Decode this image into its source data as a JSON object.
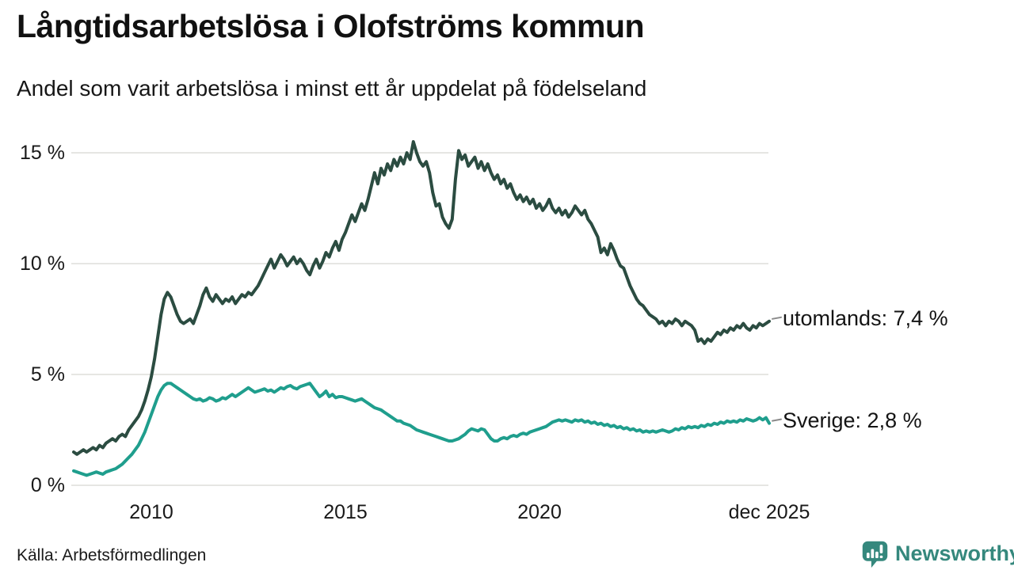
{
  "chart_data": {
    "type": "line",
    "title": "Långtidsarbetslösa i Olofströms kommun",
    "subtitle": "Andel som varit arbetslösa i minst ett år uppdelat på födelseland",
    "source": "Källa: Arbetsförmedlingen",
    "x_start": "2008-01",
    "x_end": "2025-12",
    "frequency": "monthly",
    "ylim": [
      0,
      15.5
    ],
    "grid": true,
    "unit": "%",
    "yticks": [
      {
        "value": 0,
        "label": "0 %"
      },
      {
        "value": 5,
        "label": "5 %"
      },
      {
        "value": 10,
        "label": "10 %"
      },
      {
        "value": 15,
        "label": "15 %"
      }
    ],
    "xticks": [
      {
        "month_index": 24,
        "label": "2010"
      },
      {
        "month_index": 84,
        "label": "2015"
      },
      {
        "month_index": 144,
        "label": "2020"
      },
      {
        "month_index": 215,
        "label": "dec 2025"
      }
    ],
    "series": [
      {
        "name": "utomlands",
        "color": "#2b4c41",
        "end_value": "7,4 %",
        "end_label": "utomlands: 7,4 %",
        "values": [
          1.5,
          1.4,
          1.5,
          1.6,
          1.5,
          1.6,
          1.7,
          1.6,
          1.8,
          1.7,
          1.9,
          2.0,
          2.1,
          2.0,
          2.2,
          2.3,
          2.2,
          2.5,
          2.7,
          2.9,
          3.1,
          3.4,
          3.8,
          4.3,
          4.9,
          5.7,
          6.7,
          7.7,
          8.4,
          8.7,
          8.5,
          8.1,
          7.7,
          7.4,
          7.3,
          7.4,
          7.5,
          7.3,
          7.7,
          8.1,
          8.6,
          8.9,
          8.5,
          8.3,
          8.6,
          8.4,
          8.2,
          8.4,
          8.3,
          8.5,
          8.2,
          8.4,
          8.6,
          8.5,
          8.7,
          8.6,
          8.8,
          9.0,
          9.3,
          9.6,
          9.9,
          10.2,
          9.8,
          10.1,
          10.4,
          10.2,
          9.9,
          10.1,
          10.3,
          10.0,
          10.2,
          10.0,
          9.7,
          9.5,
          9.9,
          10.2,
          9.8,
          10.1,
          10.5,
          10.3,
          10.7,
          11.0,
          10.6,
          11.1,
          11.4,
          11.8,
          12.2,
          11.9,
          12.3,
          12.7,
          12.4,
          12.9,
          13.5,
          14.1,
          13.6,
          14.3,
          14.0,
          14.5,
          14.2,
          14.7,
          14.4,
          14.8,
          14.5,
          15.0,
          14.7,
          15.5,
          15.0,
          14.6,
          14.4,
          14.6,
          14.1,
          13.2,
          12.6,
          12.7,
          12.1,
          11.8,
          11.6,
          12.0,
          13.8,
          15.1,
          14.7,
          14.9,
          14.4,
          14.6,
          14.8,
          14.3,
          14.6,
          14.2,
          14.5,
          14.1,
          13.8,
          14.0,
          13.6,
          13.8,
          13.4,
          13.6,
          13.2,
          12.9,
          13.1,
          12.8,
          13.0,
          12.7,
          12.9,
          12.5,
          12.7,
          12.4,
          12.6,
          12.9,
          12.5,
          12.3,
          12.5,
          12.2,
          12.4,
          12.1,
          12.3,
          12.6,
          12.4,
          12.2,
          12.4,
          12.0,
          11.8,
          11.5,
          11.2,
          10.5,
          10.7,
          10.4,
          10.9,
          10.6,
          10.2,
          9.9,
          9.8,
          9.4,
          9.0,
          8.7,
          8.4,
          8.2,
          8.1,
          7.9,
          7.7,
          7.6,
          7.5,
          7.3,
          7.4,
          7.2,
          7.4,
          7.3,
          7.5,
          7.4,
          7.2,
          7.4,
          7.3,
          7.2,
          7.0,
          6.5,
          6.6,
          6.4,
          6.6,
          6.5,
          6.7,
          6.9,
          6.8,
          7.0,
          6.9,
          7.1,
          7.0,
          7.2,
          7.1,
          7.3,
          7.1,
          7.0,
          7.2,
          7.1,
          7.3,
          7.2,
          7.3,
          7.4
        ]
      },
      {
        "name": "Sverige",
        "color": "#1f9e8d",
        "end_value": "2,8 %",
        "end_label": "Sverige: 2,8 %",
        "values": [
          0.65,
          0.6,
          0.55,
          0.5,
          0.45,
          0.5,
          0.55,
          0.6,
          0.55,
          0.5,
          0.6,
          0.65,
          0.7,
          0.75,
          0.85,
          0.95,
          1.1,
          1.25,
          1.4,
          1.6,
          1.8,
          2.1,
          2.4,
          2.8,
          3.2,
          3.6,
          4.0,
          4.3,
          4.5,
          4.6,
          4.6,
          4.5,
          4.4,
          4.3,
          4.2,
          4.1,
          4.0,
          3.9,
          3.85,
          3.9,
          3.8,
          3.85,
          3.95,
          3.9,
          3.8,
          3.85,
          3.95,
          3.9,
          4.0,
          4.1,
          4.0,
          4.1,
          4.2,
          4.3,
          4.4,
          4.3,
          4.2,
          4.25,
          4.3,
          4.35,
          4.25,
          4.3,
          4.2,
          4.3,
          4.4,
          4.35,
          4.45,
          4.5,
          4.4,
          4.35,
          4.45,
          4.5,
          4.55,
          4.6,
          4.4,
          4.2,
          4.0,
          4.1,
          4.25,
          4.0,
          4.1,
          3.95,
          4.0,
          4.0,
          3.95,
          3.9,
          3.85,
          3.8,
          3.85,
          3.9,
          3.8,
          3.7,
          3.6,
          3.5,
          3.45,
          3.4,
          3.3,
          3.2,
          3.1,
          3.0,
          2.9,
          2.9,
          2.8,
          2.75,
          2.7,
          2.6,
          2.5,
          2.45,
          2.4,
          2.35,
          2.3,
          2.25,
          2.2,
          2.15,
          2.1,
          2.05,
          2.0,
          2.0,
          2.05,
          2.1,
          2.2,
          2.3,
          2.45,
          2.55,
          2.5,
          2.45,
          2.55,
          2.5,
          2.3,
          2.1,
          2.0,
          2.0,
          2.1,
          2.15,
          2.1,
          2.2,
          2.25,
          2.2,
          2.3,
          2.35,
          2.3,
          2.4,
          2.45,
          2.5,
          2.55,
          2.6,
          2.65,
          2.75,
          2.85,
          2.9,
          2.95,
          2.9,
          2.95,
          2.9,
          2.85,
          2.95,
          2.9,
          2.95,
          2.85,
          2.9,
          2.8,
          2.85,
          2.75,
          2.8,
          2.7,
          2.75,
          2.65,
          2.7,
          2.6,
          2.65,
          2.55,
          2.6,
          2.5,
          2.55,
          2.45,
          2.5,
          2.4,
          2.45,
          2.4,
          2.45,
          2.4,
          2.45,
          2.5,
          2.45,
          2.4,
          2.45,
          2.55,
          2.5,
          2.6,
          2.55,
          2.65,
          2.6,
          2.65,
          2.6,
          2.7,
          2.65,
          2.75,
          2.7,
          2.8,
          2.75,
          2.85,
          2.8,
          2.9,
          2.85,
          2.9,
          2.85,
          2.95,
          2.9,
          3.0,
          2.95,
          2.9,
          2.95,
          3.05,
          2.95,
          3.05,
          2.8
        ]
      }
    ],
    "legend_position": "right-of-line-ends"
  },
  "branding": {
    "logo_text": "Newsworthy",
    "brand_color": "#35887d"
  }
}
